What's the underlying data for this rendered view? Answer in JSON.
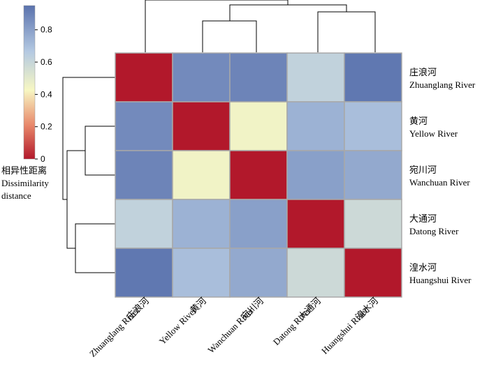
{
  "chart_data": {
    "type": "heatmap",
    "title": "",
    "rows": [
      {
        "zh": "庄浪河",
        "en": "Zhuanglang River"
      },
      {
        "zh": "黄河",
        "en": "Yellow River"
      },
      {
        "zh": "宛川河",
        "en": "Wanchuan River"
      },
      {
        "zh": "大通河",
        "en": "Datong River"
      },
      {
        "zh": "湟水河",
        "en": "Huangshui River"
      }
    ],
    "columns": [
      {
        "zh": "庄浪河",
        "en": "Zhuanglang River"
      },
      {
        "zh": "黄河",
        "en": "Yellow River"
      },
      {
        "zh": "宛川河",
        "en": "Wanchuan River"
      },
      {
        "zh": "大通河",
        "en": "Datong River"
      },
      {
        "zh": "湟水河",
        "en": "Huangshui River"
      }
    ],
    "values": [
      [
        0.0,
        0.87,
        0.89,
        0.62,
        0.93
      ],
      [
        0.87,
        0.0,
        0.45,
        0.74,
        0.7
      ],
      [
        0.89,
        0.45,
        0.0,
        0.8,
        0.77
      ],
      [
        0.62,
        0.74,
        0.8,
        0.0,
        0.58
      ],
      [
        0.93,
        0.7,
        0.77,
        0.58,
        0.0
      ]
    ],
    "colorbar": {
      "label_zh": "相异性距离",
      "label_en_line1": "Dissimilarity",
      "label_en_line2": "distance",
      "ticks": [
        "0",
        "0.2",
        "0.4",
        "0.6",
        "0.8"
      ],
      "tick_values": [
        0,
        0.2,
        0.4,
        0.6,
        0.8
      ],
      "range": [
        0,
        0.95
      ],
      "colors": [
        "#b2182b",
        "#e8876a",
        "#f7f7c3",
        "#b4c9e2",
        "#5a72ad"
      ]
    },
    "dendrogram": {
      "top": "clusters: Zhuanglang | ((Yellow, Wanchuan), (Datong, Huangshui))",
      "left": "clusters: Zhuanglang | ((Yellow, Wanchuan), (Datong, Huangshui))"
    }
  }
}
